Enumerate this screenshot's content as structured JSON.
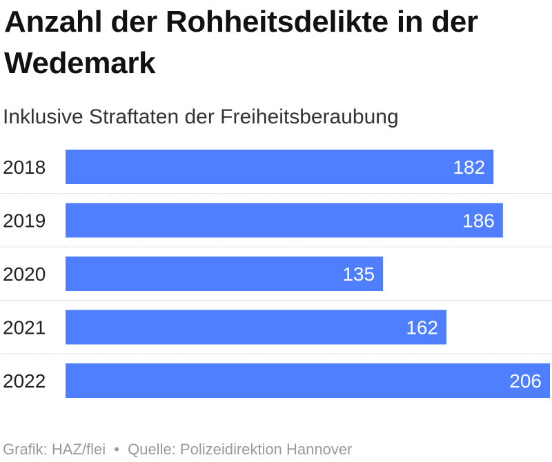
{
  "title": "Anzahl der Rohheitsdelikte in der Wedemark",
  "subtitle": "Inklusive Straftaten der Freiheitsberaubung",
  "footer": {
    "credit": "Grafik: HAZ/flei",
    "separator": "•",
    "source": "Quelle: Polizeidirektion Hannover"
  },
  "colors": {
    "bar": "#4f7fff",
    "value_label": "#ffffff",
    "category_label": "#222222",
    "divider": "#cfcfcf"
  },
  "chart_data": {
    "type": "bar",
    "orientation": "horizontal",
    "categories": [
      "2018",
      "2019",
      "2020",
      "2021",
      "2022"
    ],
    "values": [
      182,
      186,
      135,
      162,
      206
    ],
    "title": "Anzahl der Rohheitsdelikte in der Wedemark",
    "subtitle": "Inklusive Straftaten der Freiheitsberaubung",
    "xlabel": "",
    "ylabel": "",
    "xlim": [
      0,
      206
    ],
    "grid": false,
    "legend": "none",
    "value_labels": "inside-end"
  }
}
